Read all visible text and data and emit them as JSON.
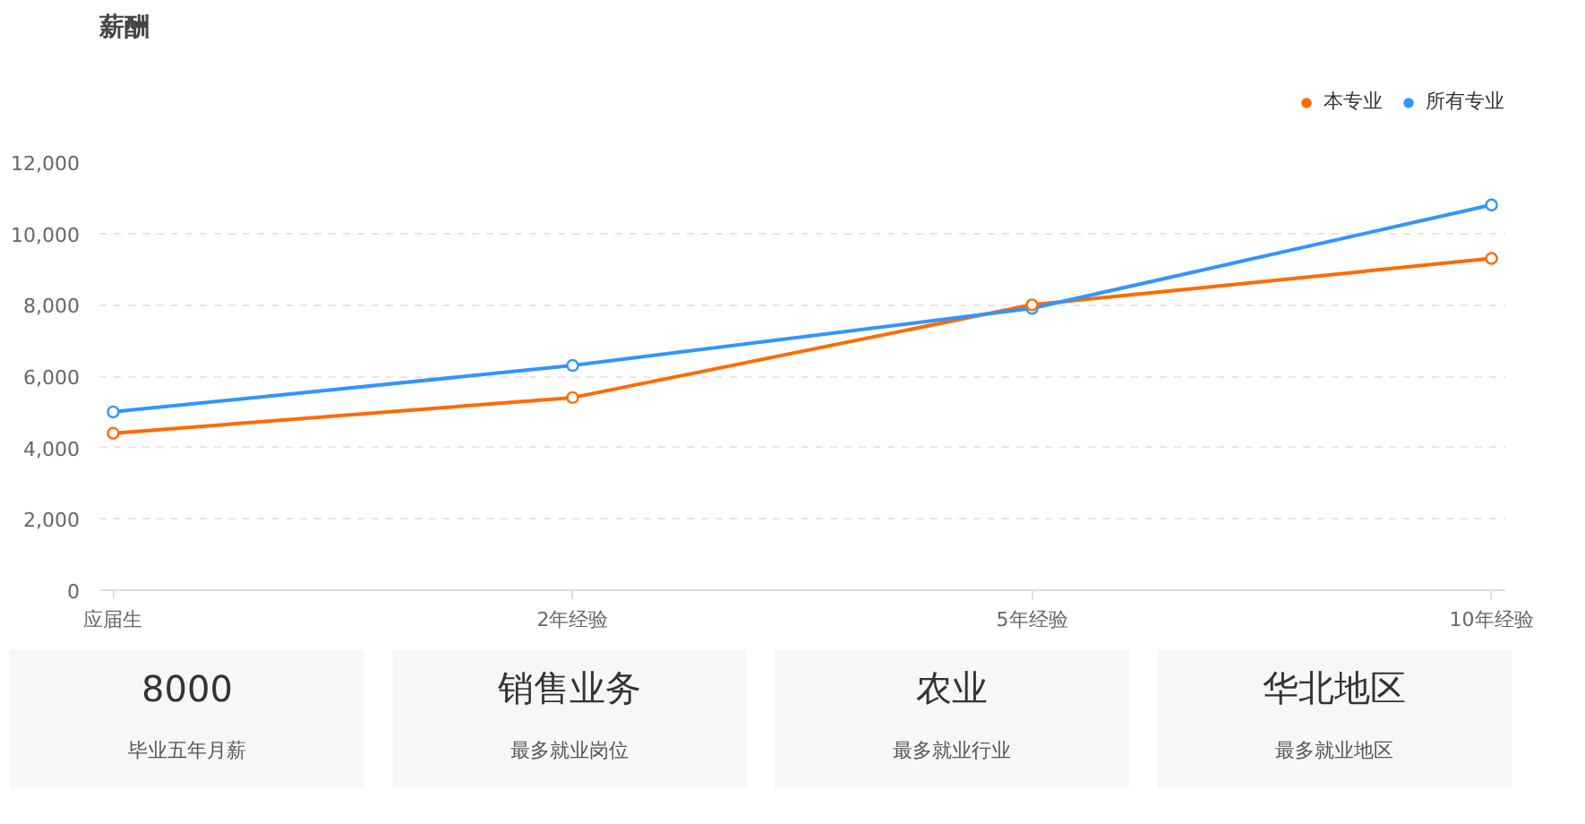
{
  "chart_data": [
    {
      "type": "line",
      "title": "薪酬",
      "categories": [
        "应届生",
        "2年经验",
        "5年经验",
        "10年经验"
      ],
      "series": [
        {
          "name": "本专业",
          "color": "#ff6a00",
          "values": [
            4400,
            5400,
            8000,
            9300
          ]
        },
        {
          "name": "所有专业",
          "color": "#3394ff",
          "values": [
            5000,
            6300,
            7900,
            10800
          ]
        }
      ],
      "ylim": [
        0,
        12000
      ],
      "yticks": [
        {
          "value": 0,
          "label": "0"
        },
        {
          "value": 2000,
          "label": "2,000"
        },
        {
          "value": 4000,
          "label": "4,000"
        },
        {
          "value": 6000,
          "label": "6,000"
        },
        {
          "value": 8000,
          "label": "8,000"
        },
        {
          "value": 10000,
          "label": "10,000"
        },
        {
          "value": 12000,
          "label": "12,000"
        }
      ],
      "grid": "y",
      "legend": "top right",
      "marker": "circle",
      "line_style": "solid"
    },
    {
      "type": "other",
      "categories": [
        "8000",
        "销售业务",
        "农业",
        "华北地区"
      ],
      "annotations": [
        "毕业五年月薪",
        "最多就业岗位",
        "最多就业行业",
        "最多就业地区"
      ]
    }
  ]
}
